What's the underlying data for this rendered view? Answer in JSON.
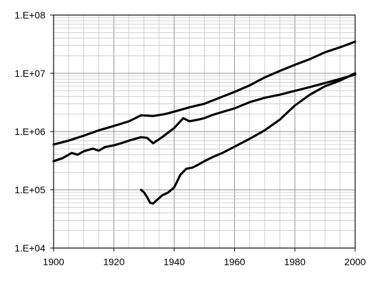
{
  "chart_data": {
    "type": "line",
    "title": "",
    "xlabel": "",
    "ylabel": "",
    "x_scale": "linear",
    "y_scale": "log",
    "xlim": [
      1900,
      2000
    ],
    "ylim": [
      10000,
      100000000
    ],
    "grid": true,
    "legend": "none",
    "x_ticks": [
      "1900",
      "1920",
      "1940",
      "1960",
      "1980",
      "2000"
    ],
    "y_ticks": [
      "1.E+04",
      "1.E+05",
      "1.E+06",
      "1.E+07",
      "1.E+08"
    ],
    "series": [
      {
        "x": [
          1900,
          1905,
          1910,
          1915,
          1920,
          1925,
          1929,
          1933,
          1937,
          1940,
          1945,
          1950,
          1955,
          1960,
          1965,
          1970,
          1975,
          1980,
          1985,
          1990,
          1995,
          2000
        ],
        "values": [
          600000,
          700000,
          850000,
          1050000,
          1250000,
          1500000,
          1900000,
          1850000,
          2000000,
          2200000,
          2600000,
          3000000,
          3800000,
          4800000,
          6200000,
          8500000,
          11000000,
          14000000,
          17500000,
          23000000,
          28000000,
          35000000
        ]
      },
      {
        "x": [
          1900,
          1903,
          1906,
          1908,
          1910,
          1913,
          1915,
          1917,
          1920,
          1922,
          1925,
          1929,
          1931,
          1933,
          1936,
          1940,
          1943,
          1945,
          1948,
          1950,
          1953,
          1955,
          1960,
          1965,
          1970,
          1975,
          1980,
          1985,
          1990,
          1995,
          2000
        ],
        "values": [
          310000,
          350000,
          430000,
          400000,
          460000,
          510000,
          470000,
          540000,
          580000,
          620000,
          700000,
          800000,
          780000,
          630000,
          800000,
          1150000,
          1700000,
          1500000,
          1600000,
          1700000,
          1950000,
          2100000,
          2500000,
          3200000,
          3800000,
          4300000,
          5000000,
          5800000,
          6800000,
          8000000,
          9500000
        ]
      },
      {
        "x": [
          1929,
          1930,
          1931,
          1932,
          1933,
          1934,
          1936,
          1938,
          1940,
          1942,
          1944,
          1946,
          1948,
          1950,
          1953,
          1956,
          1960,
          1965,
          1970,
          1975,
          1980,
          1985,
          1990,
          1995,
          2000
        ],
        "values": [
          100000,
          90000,
          75000,
          60000,
          58000,
          65000,
          80000,
          90000,
          110000,
          180000,
          230000,
          240000,
          270000,
          310000,
          370000,
          430000,
          550000,
          750000,
          1050000,
          1600000,
          2800000,
          4300000,
          6000000,
          7500000,
          10000000
        ]
      }
    ]
  }
}
